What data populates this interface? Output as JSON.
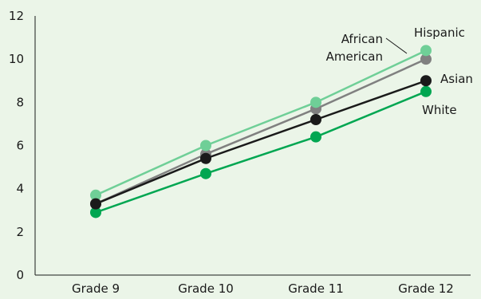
{
  "chart_data": {
    "type": "line",
    "categories": [
      "Grade 9",
      "Grade 10",
      "Grade 11",
      "Grade 12"
    ],
    "ylim": [
      0,
      12
    ],
    "yticks": [
      0,
      2,
      4,
      6,
      8,
      10,
      12
    ],
    "grid": false,
    "series": [
      {
        "name": "White",
        "values": [
          2.9,
          4.7,
          6.4,
          8.5
        ],
        "color": "#00a651"
      },
      {
        "name": "African American",
        "values": [
          3.3,
          5.6,
          7.7,
          10.0
        ],
        "color": "#808080"
      },
      {
        "name": "Hispanic",
        "values": [
          3.7,
          6.0,
          8.0,
          10.4
        ],
        "color": "#6fcf97"
      },
      {
        "name": "Asian",
        "values": [
          3.3,
          5.4,
          7.2,
          9.0
        ],
        "color": "#1a1a1a"
      }
    ],
    "labels": {
      "white": "White",
      "asian": "Asian",
      "hispanic": "Hispanic",
      "african_american_line1": "African",
      "african_american_line2": "American"
    }
  }
}
